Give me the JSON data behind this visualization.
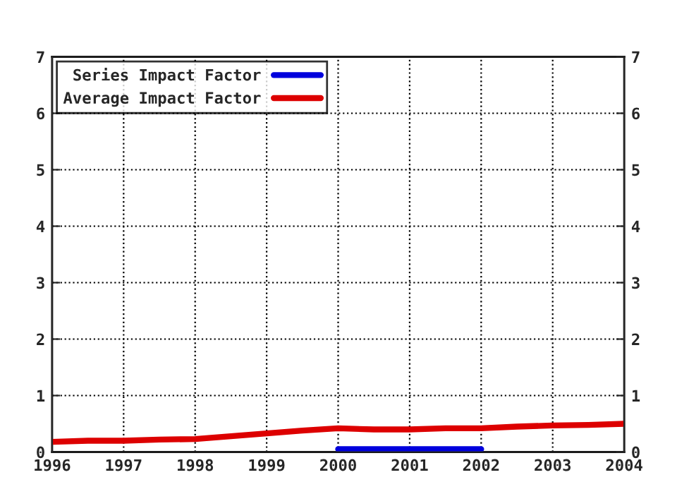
{
  "chart_data": {
    "type": "line",
    "x": [
      1996,
      1996.5,
      1997,
      1997.5,
      1998,
      1998.5,
      1999,
      1999.5,
      2000,
      2000.5,
      2001,
      2001.5,
      2002,
      2002.5,
      2003,
      2003.5,
      2004
    ],
    "series": [
      {
        "name": "Series Impact Factor",
        "color": "#0000dd",
        "values": [
          null,
          null,
          null,
          null,
          null,
          null,
          null,
          null,
          0.05,
          0.05,
          0.05,
          0.05,
          0.05,
          null,
          null,
          null,
          null
        ]
      },
      {
        "name": "Average Impact Factor",
        "color": "#dd0000",
        "values": [
          0.18,
          0.2,
          0.2,
          0.22,
          0.23,
          0.28,
          0.33,
          0.38,
          0.42,
          0.4,
          0.4,
          0.42,
          0.42,
          0.45,
          0.47,
          0.48,
          0.5
        ]
      }
    ],
    "xlim": [
      1996,
      2004
    ],
    "xticks": [
      1996,
      1997,
      1998,
      1999,
      2000,
      2001,
      2002,
      2003,
      2004
    ],
    "ylim": [
      0,
      7
    ],
    "yticks": [
      0,
      1,
      2,
      3,
      4,
      5,
      6,
      7
    ],
    "y2lim": [
      0,
      7
    ],
    "y2ticks": [
      0,
      1,
      2,
      3,
      4,
      5,
      6,
      7
    ],
    "grid": true,
    "legend": "top left",
    "line_style": "solid",
    "marker": "none"
  }
}
